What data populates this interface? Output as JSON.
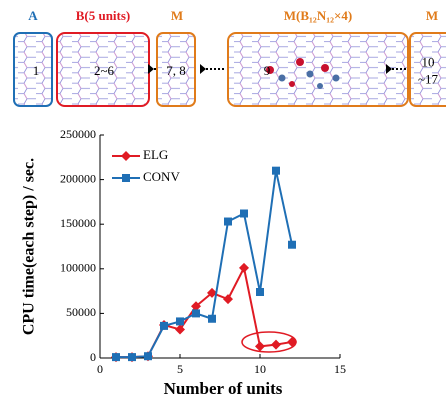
{
  "diagram": {
    "nodes": [
      {
        "heading": "A",
        "label_lines": [
          "1"
        ]
      },
      {
        "heading": "B(5 units)",
        "label_lines": [
          "2~6"
        ]
      },
      {
        "heading": "M",
        "label_lines": [
          "7, 8"
        ]
      },
      {
        "heading": "M(B₁₂N₁₂×4)",
        "label_lines": [
          "9"
        ]
      },
      {
        "heading": "M",
        "label_lines": [
          "10",
          "~17"
        ]
      }
    ]
  },
  "chart_data": {
    "type": "line",
    "x_label": "Number of units",
    "y_label": "CPU time(each step)  / sec.",
    "xlim": [
      0,
      15
    ],
    "xticks": [
      0,
      5,
      10,
      15
    ],
    "ylim": [
      0,
      250000
    ],
    "yticks": [
      0,
      50000,
      100000,
      150000,
      200000,
      250000
    ],
    "x": [
      1,
      2,
      3,
      4,
      5,
      6,
      7,
      8,
      9,
      10,
      11,
      12
    ],
    "legend": "upper left",
    "series": [
      {
        "name": "ELG",
        "color": "#e01b24",
        "marker": "diamond",
        "values": [
          1000,
          1000,
          2000,
          37000,
          32000,
          58000,
          73000,
          66000,
          101000,
          13000,
          15000,
          18000
        ]
      },
      {
        "name": "CONV",
        "color": "#1f6fb5",
        "marker": "square",
        "values": [
          1000,
          1000,
          2000,
          36000,
          41000,
          50000,
          44000,
          153000,
          162000,
          74000,
          210000,
          127000
        ]
      }
    ]
  }
}
